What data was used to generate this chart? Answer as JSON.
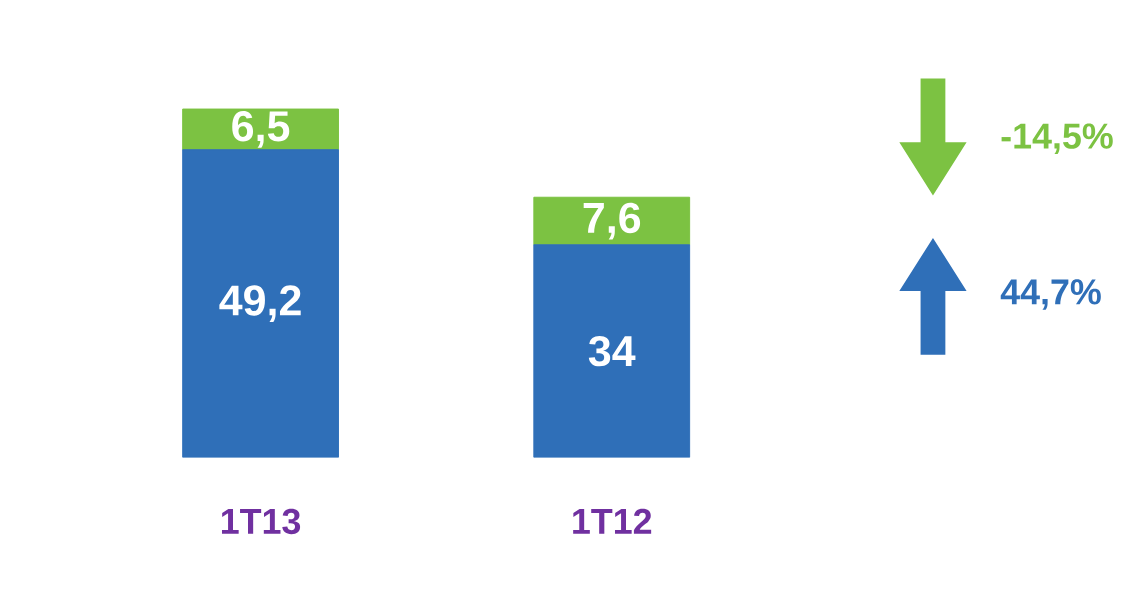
{
  "chart_data": {
    "type": "bar",
    "stacked": true,
    "categories": [
      "1T13",
      "1T12"
    ],
    "series": [
      {
        "color": "#2f6fb8",
        "values": [
          49.2,
          34
        ],
        "value_labels": [
          "49,2",
          "34"
        ]
      },
      {
        "color": "#7cc242",
        "values": [
          6.5,
          7.6
        ],
        "value_labels": [
          "6,5",
          "7,6"
        ]
      }
    ],
    "annotations": [
      "-14,5%",
      "44,7%"
    ]
  }
}
